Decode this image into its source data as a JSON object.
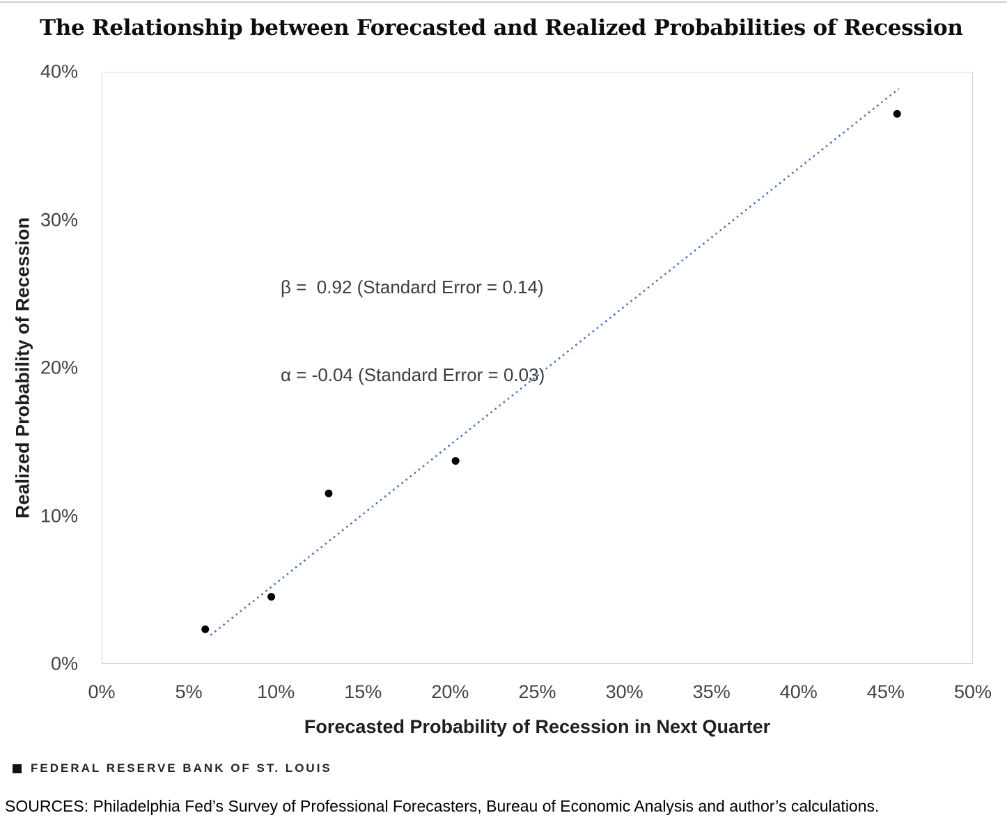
{
  "page": {
    "title": "The Relationship between Forecasted and Realized Probabilities of Recession"
  },
  "chart_data": {
    "type": "scatter",
    "title": "The Relationship between Forecasted and Realized Probabilities of Recession",
    "xlabel": "Forecasted Probability of Recession in Next Quarter",
    "ylabel": "Realized Probability of Recession",
    "xlim": [
      0,
      50
    ],
    "ylim": [
      0,
      40
    ],
    "x_tick_values": [
      0,
      5,
      10,
      15,
      20,
      25,
      30,
      35,
      40,
      45,
      50
    ],
    "x_tick_labels": [
      "0%",
      "5%",
      "10%",
      "15%",
      "20%",
      "25%",
      "30%",
      "35%",
      "40%",
      "45%",
      "50%"
    ],
    "y_tick_values": [
      0,
      10,
      20,
      30,
      40
    ],
    "y_tick_labels": [
      "0%",
      "10%",
      "20%",
      "30%",
      "40%"
    ],
    "grid": false,
    "legend": "none",
    "points_xy_percent": [
      [
        5.9,
        2.3
      ],
      [
        9.7,
        4.5
      ],
      [
        13.0,
        11.5
      ],
      [
        20.3,
        13.7
      ],
      [
        45.7,
        37.2
      ]
    ],
    "point_color": "#000000",
    "point_radius_px": 5.5,
    "trendline": {
      "style": "dotted",
      "color": "#4472C4",
      "x1": 6.2,
      "y1": 1.9,
      "x2": 45.8,
      "y2": 38.9,
      "beta": 0.92,
      "beta_standard_error": 0.14,
      "alpha": -0.04,
      "alpha_standard_error": 0.03
    },
    "annotation": {
      "line1": "β =  0.92 (Standard Error = 0.14)",
      "line2": "α = -0.04 (Standard Error = 0.03)"
    }
  },
  "footer": {
    "logo_text": "FEDERAL RESERVE BANK OF ST. LOUIS",
    "sources": "SOURCES: Philadelphia Fed’s Survey of Professional Forecasters, Bureau of Economic Analysis and author’s calculations."
  }
}
